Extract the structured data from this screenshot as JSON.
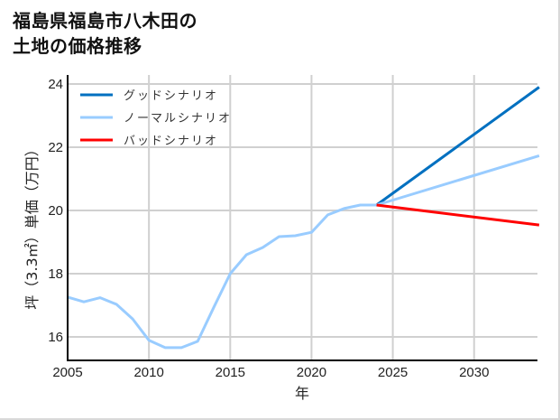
{
  "title_line1": "福島県福島市八木田の",
  "title_line2": "土地の価格推移",
  "chart_data": {
    "type": "line",
    "title": "福島県福島市八木田の土地の価格推移",
    "xlabel": "年",
    "ylabel": "坪（3.3㎡）単価（万円）",
    "xlim": [
      2005,
      2034
    ],
    "ylim": [
      15.3,
      24.3
    ],
    "xticks": [
      2005,
      2010,
      2015,
      2020,
      2025,
      2030
    ],
    "yticks": [
      16,
      18,
      20,
      22,
      24
    ],
    "grid": true,
    "legend_position": "upper left",
    "series": [
      {
        "name": "グッドシナリオ",
        "color": "#0070c0",
        "x": [
          2024,
          2034
        ],
        "values": [
          20.17,
          23.9
        ]
      },
      {
        "name": "ノーマルシナリオ",
        "color": "#99ccff",
        "x": [
          2005,
          2006,
          2007,
          2008,
          2009,
          2010,
          2011,
          2012,
          2013,
          2014,
          2015,
          2016,
          2017,
          2018,
          2019,
          2020,
          2021,
          2022,
          2023,
          2024,
          2034
        ],
        "values": [
          17.26,
          17.11,
          17.24,
          17.03,
          16.57,
          15.89,
          15.66,
          15.66,
          15.86,
          16.95,
          18.0,
          18.6,
          18.83,
          19.17,
          19.2,
          19.31,
          19.86,
          20.06,
          20.17,
          20.17,
          21.73
        ]
      },
      {
        "name": "バッドシナリオ",
        "color": "#ff0000",
        "x": [
          2024,
          2034
        ],
        "values": [
          20.17,
          19.54
        ]
      }
    ]
  }
}
